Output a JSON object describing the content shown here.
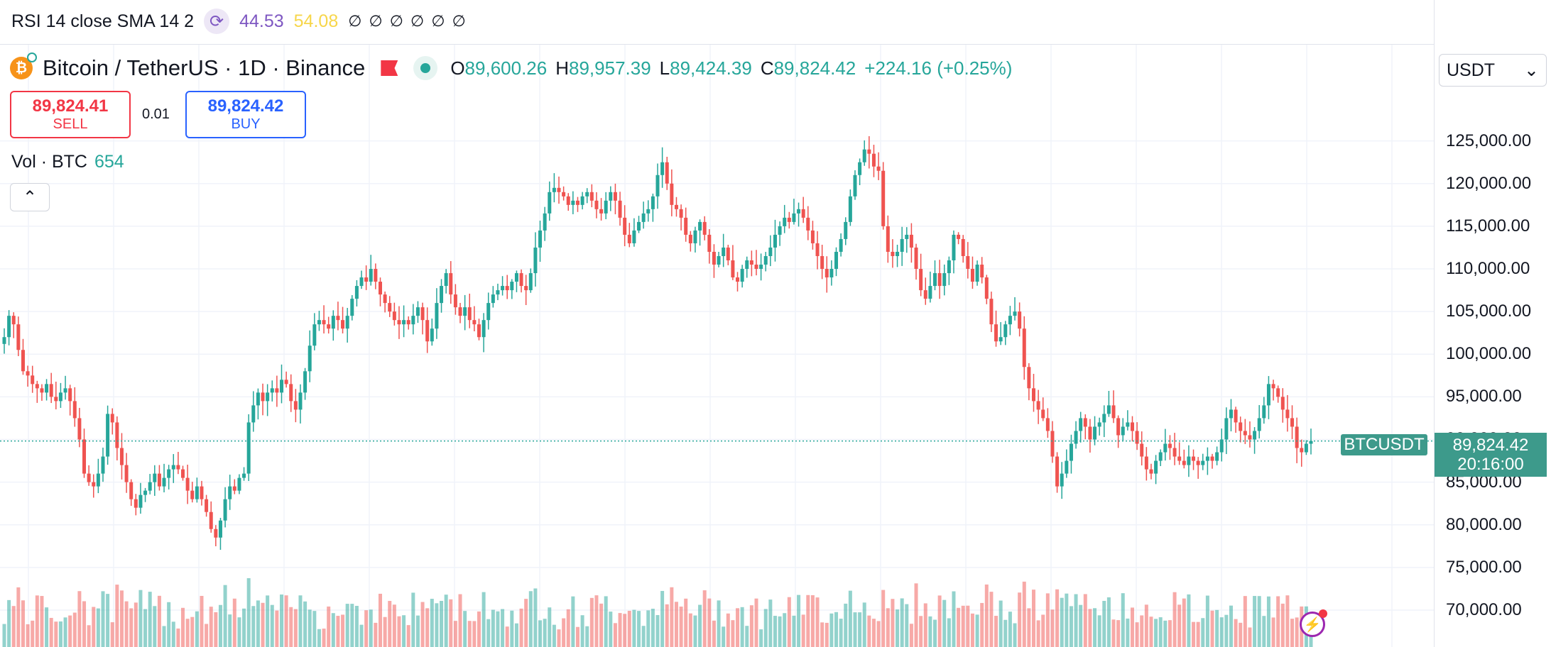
{
  "indicator": {
    "label": "RSI 14 close SMA 14 2",
    "rsi_value": "44.53",
    "sma_value": "54.08",
    "na_values": "∅ ∅ ∅ ∅ ∅ ∅"
  },
  "symbol": {
    "title": "Bitcoin / TetherUS · 1D · Binance",
    "open_label": "O",
    "open": "89,600.26",
    "high_label": "H",
    "high": "89,957.39",
    "low_label": "L",
    "low": "89,424.39",
    "close_label": "C",
    "close": "89,824.42",
    "change": "+224.16 (+0.25%)"
  },
  "trade": {
    "sell_price": "89,824.41",
    "sell_label": "SELL",
    "spread": "0.01",
    "buy_price": "89,824.42",
    "buy_label": "BUY"
  },
  "volume": {
    "label": "Vol · BTC",
    "value": "654"
  },
  "currency": {
    "selected": "USDT",
    "chevron": "⌄"
  },
  "price_axis": {
    "ticks": [
      "125,000.00",
      "120,000.00",
      "115,000.00",
      "110,000.00",
      "105,000.00",
      "100,000.00",
      "95,000.00",
      "90,000.00",
      "85,000.00",
      "80,000.00",
      "75,000.00",
      "70,000.00"
    ]
  },
  "last_price": {
    "symbol": "BTCUSDT",
    "price": "89,824.42",
    "countdown": "20:16:00"
  },
  "colors": {
    "up": "#26a69a",
    "down": "#ef5350",
    "grid": "#f0f3fa"
  },
  "chart_data": {
    "type": "candlestick",
    "ylim": [
      68500,
      127800
    ],
    "grid": true,
    "closes": [
      102000,
      104500,
      103500,
      100500,
      98000,
      97500,
      96500,
      96000,
      95500,
      96500,
      95000,
      94500,
      95500,
      96000,
      94500,
      92500,
      90000,
      86000,
      85000,
      84500,
      86000,
      88000,
      93000,
      92000,
      89000,
      87000,
      85000,
      83000,
      82000,
      83500,
      84000,
      85000,
      86000,
      84500,
      85500,
      86500,
      87000,
      86500,
      85500,
      84000,
      83000,
      84500,
      83000,
      81500,
      79500,
      78500,
      80500,
      83000,
      84500,
      84000,
      85500,
      86000,
      92000,
      94000,
      95500,
      94500,
      95500,
      96000,
      95500,
      97000,
      96500,
      94500,
      93500,
      95500,
      98000,
      101000,
      103500,
      104000,
      103500,
      103000,
      104500,
      104000,
      103000,
      104500,
      106500,
      108000,
      109000,
      108500,
      110000,
      108500,
      107000,
      106000,
      105000,
      104000,
      103500,
      104000,
      103500,
      104500,
      105500,
      104000,
      101500,
      103000,
      106000,
      108000,
      109500,
      107000,
      105500,
      104500,
      105500,
      104000,
      103500,
      102000,
      104000,
      106000,
      107000,
      107500,
      108000,
      107500,
      108500,
      109500,
      108000,
      107500,
      109500,
      112500,
      114500,
      116500,
      119000,
      119500,
      119000,
      118500,
      117500,
      118000,
      117500,
      118500,
      119000,
      118000,
      117000,
      116500,
      118000,
      119000,
      118000,
      116000,
      114000,
      113000,
      114500,
      115500,
      116500,
      117000,
      118500,
      121000,
      122500,
      120000,
      117500,
      117000,
      116000,
      114000,
      113000,
      114500,
      115500,
      114000,
      112000,
      110500,
      111500,
      112500,
      111000,
      109000,
      108500,
      110000,
      111000,
      110500,
      110000,
      110500,
      111500,
      112500,
      114000,
      115000,
      116000,
      115500,
      116500,
      117000,
      116000,
      114500,
      113000,
      111500,
      110000,
      109000,
      110000,
      112000,
      113500,
      115500,
      118500,
      121000,
      122500,
      124000,
      123500,
      122000,
      121500,
      115000,
      112000,
      111500,
      112000,
      113500,
      114000,
      112500,
      110000,
      107500,
      106500,
      108000,
      109500,
      108000,
      109500,
      111000,
      114000,
      113500,
      111500,
      110000,
      108500,
      110500,
      109000,
      106500,
      103500,
      101500,
      102000,
      103500,
      104500,
      105000,
      103000,
      98500,
      96000,
      94500,
      93500,
      92500,
      91000,
      88000,
      84500,
      86000,
      87500,
      89500,
      91000,
      92500,
      91500,
      90000,
      91500,
      92000,
      93000,
      94000,
      92500,
      90500,
      91500,
      92000,
      91000,
      89500,
      88000,
      86500,
      86000,
      87500,
      88500,
      89500,
      89000,
      88000,
      87500,
      87000,
      88000,
      87500,
      87000,
      87500,
      88000,
      87500,
      88500,
      90000,
      92500,
      93500,
      92000,
      91000,
      90500,
      90000,
      91000,
      92500,
      94000,
      96500,
      96000,
      95000,
      93500,
      92500,
      91500,
      89000,
      88500,
      89500,
      89824
    ]
  }
}
